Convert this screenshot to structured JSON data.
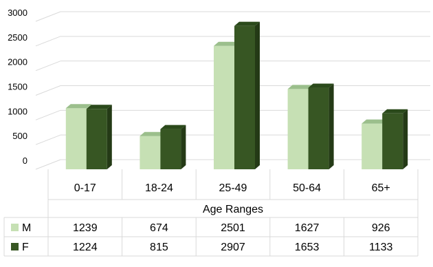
{
  "chart_data": {
    "type": "bar",
    "variant": "3d-clustered-column-with-data-table",
    "categories": [
      "0-17",
      "18-24",
      "25-49",
      "50-64",
      "65+"
    ],
    "xlabel": "Age Ranges",
    "ylabel": "",
    "ylim": [
      0,
      3000
    ],
    "yticks": [
      "0",
      "500",
      "1000",
      "1500",
      "2000",
      "2500",
      "3000"
    ],
    "grid": true,
    "legend": "data-table",
    "series": [
      {
        "name": "M",
        "values": [
          1239,
          674,
          2501,
          1627,
          926
        ],
        "color": "#c6e0b4",
        "side": "#a9c99a",
        "top": "#9bbf8c"
      },
      {
        "name": "F",
        "values": [
          1224,
          815,
          2907,
          1653,
          1133
        ],
        "color": "#375623",
        "side": "#243a16",
        "top": "#2b4a1b"
      }
    ]
  }
}
